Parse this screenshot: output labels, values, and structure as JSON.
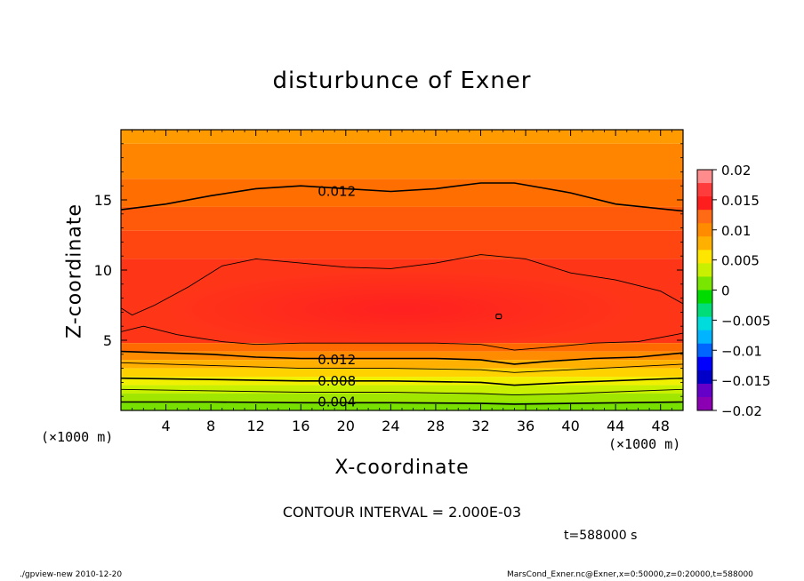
{
  "chart_data": {
    "type": "contour",
    "title": "disturbunce of Exner",
    "xlabel": "X-coordinate",
    "ylabel": "Z-coordinate",
    "x_unit": "(×1000 m)",
    "y_unit": "(×1000 m)",
    "xlim": [
      0,
      50
    ],
    "ylim": [
      0,
      20
    ],
    "x_ticks": [
      4,
      8,
      12,
      16,
      20,
      24,
      28,
      32,
      36,
      40,
      44,
      48
    ],
    "y_ticks": [
      5,
      10,
      15
    ],
    "contour_interval": "CONTOUR INTERVAL = 2.000E-03",
    "contour_labels": [
      {
        "text": "0.012",
        "x": 17.5,
        "z": 15.6
      },
      {
        "text": "0.012",
        "x": 17.5,
        "z": 3.6
      },
      {
        "text": "0.008",
        "x": 17.5,
        "z": 2.1
      },
      {
        "text": "0.004",
        "x": 17.5,
        "z": 0.6
      }
    ],
    "colorbar": {
      "min": -0.02,
      "max": 0.02,
      "ticks": [
        "0.02",
        "0.015",
        "0.01",
        "0.005",
        "0",
        "−0.005",
        "−0.01",
        "−0.015",
        "−0.02"
      ],
      "colors": [
        "#ff8c8c",
        "#ff3c3c",
        "#ff1e1e",
        "#ff6a14",
        "#ff8c00",
        "#ffb000",
        "#ffe600",
        "#c8f000",
        "#78e600",
        "#00dc00",
        "#00dc78",
        "#00dcdc",
        "#00b4ff",
        "#0064ff",
        "#0000ff",
        "#0000c8",
        "#6400c8",
        "#8c00b4"
      ]
    },
    "fill_bands": [
      {
        "zmin": 19.0,
        "zmax": 20,
        "color": "#ff9a00"
      },
      {
        "zmin": 16.5,
        "zmax": 19.0,
        "color": "#ff8400"
      },
      {
        "zmin": 14.5,
        "zmax": 16.5,
        "color": "#ff6e00"
      },
      {
        "zmin": 12.8,
        "zmax": 14.5,
        "color": "#ff5a0a"
      },
      {
        "zmin": 10.8,
        "zmax": 12.8,
        "color": "#ff4610"
      },
      {
        "zmin": 4.8,
        "zmax": 10.8,
        "color": "#ff3518"
      },
      {
        "zmin": 4.2,
        "zmax": 4.8,
        "color": "#ff6a00"
      },
      {
        "zmin": 3.6,
        "zmax": 4.2,
        "color": "#ff8c00"
      },
      {
        "zmin": 3.0,
        "zmax": 3.6,
        "color": "#ffb000"
      },
      {
        "zmin": 2.4,
        "zmax": 3.0,
        "color": "#ffd200"
      },
      {
        "zmin": 1.8,
        "zmax": 2.4,
        "color": "#f0f000"
      },
      {
        "zmin": 1.2,
        "zmax": 1.8,
        "color": "#c8f000"
      },
      {
        "zmin": 0.6,
        "zmax": 1.2,
        "color": "#a0e600"
      },
      {
        "zmin": 0.0,
        "zmax": 0.6,
        "color": "#78e000"
      }
    ],
    "core_color": "#ff2020",
    "contour_lines": [
      {
        "level": "0.012",
        "points": [
          [
            0,
            14.3
          ],
          [
            4,
            14.7
          ],
          [
            8,
            15.3
          ],
          [
            12,
            15.8
          ],
          [
            16,
            16.0
          ],
          [
            20,
            15.8
          ],
          [
            24,
            15.6
          ],
          [
            28,
            15.8
          ],
          [
            32,
            16.2
          ],
          [
            35,
            16.2
          ],
          [
            40,
            15.5
          ],
          [
            44,
            14.7
          ],
          [
            50,
            14.2
          ]
        ],
        "bold": true
      },
      {
        "level": "0.014",
        "points": [
          [
            0,
            7.3
          ],
          [
            1,
            6.8
          ],
          [
            3,
            7.5
          ],
          [
            6,
            8.8
          ],
          [
            9,
            10.3
          ],
          [
            12,
            10.8
          ],
          [
            16,
            10.5
          ],
          [
            20,
            10.2
          ],
          [
            24,
            10.1
          ],
          [
            28,
            10.5
          ],
          [
            32,
            11.1
          ],
          [
            36,
            10.8
          ],
          [
            40,
            9.8
          ],
          [
            44,
            9.3
          ],
          [
            48,
            8.5
          ],
          [
            50,
            7.6
          ]
        ],
        "bold": false
      },
      {
        "level": "0.014",
        "points": [
          [
            0,
            5.6
          ],
          [
            2,
            6.0
          ],
          [
            5,
            5.4
          ],
          [
            9,
            4.9
          ],
          [
            12,
            4.7
          ],
          [
            16,
            4.8
          ],
          [
            20,
            4.8
          ],
          [
            24,
            4.8
          ],
          [
            28,
            4.8
          ],
          [
            32,
            4.7
          ],
          [
            35,
            4.3
          ],
          [
            38,
            4.5
          ],
          [
            42,
            4.8
          ],
          [
            46,
            4.9
          ],
          [
            50,
            5.5
          ]
        ],
        "bold": false
      },
      {
        "level": "0.012",
        "points": [
          [
            0,
            4.2
          ],
          [
            4,
            4.1
          ],
          [
            8,
            4.0
          ],
          [
            12,
            3.8
          ],
          [
            16,
            3.7
          ],
          [
            20,
            3.7
          ],
          [
            24,
            3.7
          ],
          [
            28,
            3.7
          ],
          [
            32,
            3.6
          ],
          [
            35,
            3.3
          ],
          [
            38,
            3.5
          ],
          [
            42,
            3.7
          ],
          [
            46,
            3.8
          ],
          [
            50,
            4.1
          ]
        ],
        "bold": true
      },
      {
        "level": "0.010",
        "points": [
          [
            0,
            3.4
          ],
          [
            8,
            3.2
          ],
          [
            16,
            3.0
          ],
          [
            24,
            3.0
          ],
          [
            32,
            2.9
          ],
          [
            35,
            2.7
          ],
          [
            40,
            2.9
          ],
          [
            50,
            3.3
          ]
        ],
        "bold": false
      },
      {
        "level": "0.008",
        "points": [
          [
            0,
            2.3
          ],
          [
            8,
            2.2
          ],
          [
            16,
            2.1
          ],
          [
            24,
            2.1
          ],
          [
            32,
            2.0
          ],
          [
            35,
            1.8
          ],
          [
            40,
            2.0
          ],
          [
            50,
            2.3
          ]
        ],
        "bold": true
      },
      {
        "level": "0.006",
        "points": [
          [
            0,
            1.5
          ],
          [
            8,
            1.4
          ],
          [
            16,
            1.3
          ],
          [
            24,
            1.3
          ],
          [
            32,
            1.2
          ],
          [
            35,
            1.1
          ],
          [
            40,
            1.2
          ],
          [
            50,
            1.5
          ]
        ],
        "bold": false
      },
      {
        "level": "0.004",
        "points": [
          [
            0,
            0.6
          ],
          [
            8,
            0.6
          ],
          [
            16,
            0.55
          ],
          [
            24,
            0.55
          ],
          [
            32,
            0.5
          ],
          [
            35,
            0.45
          ],
          [
            40,
            0.5
          ],
          [
            50,
            0.6
          ]
        ],
        "bold": true
      }
    ],
    "marker_point": {
      "x": 33.6,
      "z": 6.7
    }
  },
  "timestamp": "t=588000 s",
  "footer_left": "./gpview-new   2010-12-20",
  "footer_right": "MarsCond_Exner.nc@Exner,x=0:50000,z=0:20000,t=588000"
}
